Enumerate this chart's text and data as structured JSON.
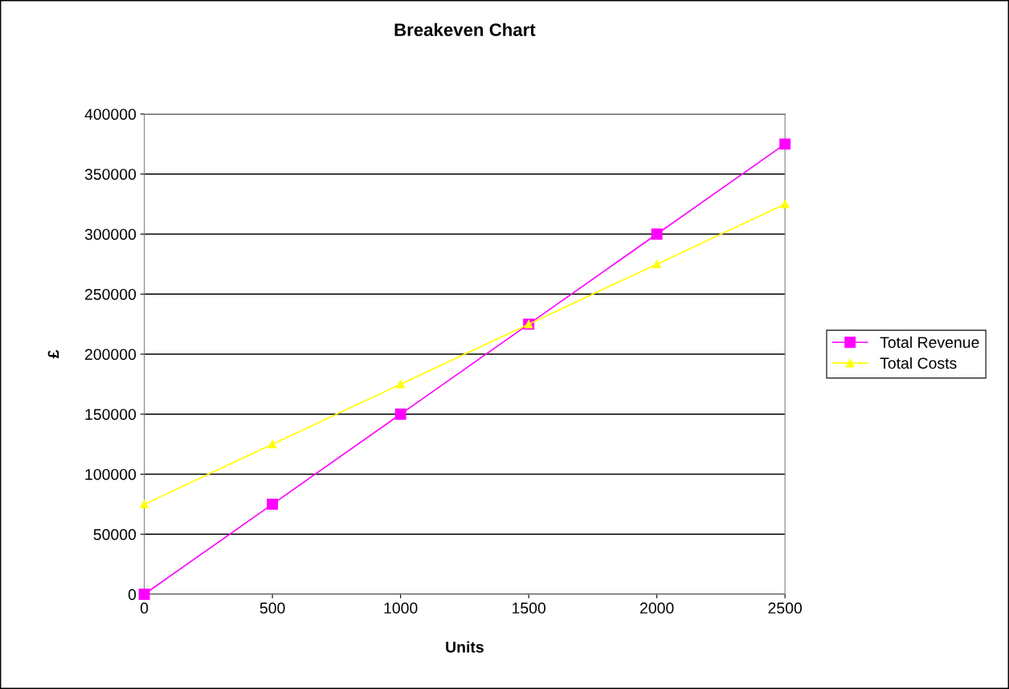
{
  "chart_data": {
    "type": "line",
    "title": "Breakeven Chart",
    "xlabel": "Units",
    "ylabel": "£",
    "x": [
      0,
      500,
      1000,
      1500,
      2000,
      2500
    ],
    "series": [
      {
        "name": "Total Revenue",
        "color": "#ff00ff",
        "marker": "square",
        "values": [
          0,
          75000,
          150000,
          225000,
          300000,
          375000
        ]
      },
      {
        "name": "Total Costs",
        "color": "#ffff00",
        "marker": "triangle",
        "values": [
          75000,
          125000,
          175000,
          225000,
          275000,
          325000
        ]
      }
    ],
    "xlim": [
      0,
      2500
    ],
    "xticks": [
      0,
      500,
      1000,
      1500,
      2000,
      2500
    ],
    "ylim": [
      0,
      400000
    ],
    "yticks": [
      0,
      50000,
      100000,
      150000,
      200000,
      250000,
      300000,
      350000,
      400000
    ],
    "grid": "y",
    "legend": "right",
    "line_style": "solid"
  }
}
